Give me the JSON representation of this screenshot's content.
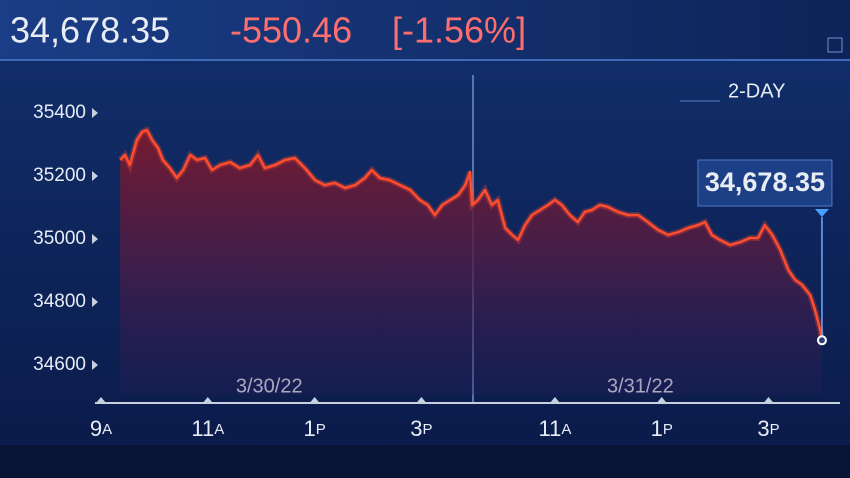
{
  "chart_data": {
    "type": "line",
    "header": {
      "value": "34,678.35",
      "change": "-550.46",
      "change_pct": "[-1.56%]"
    },
    "period_label": "2-DAY",
    "last_value_label": "34,678.35",
    "date_labels": [
      {
        "x": 12.15,
        "label": "3/30/22"
      },
      {
        "x": 19.1,
        "label": "3/31/22"
      }
    ],
    "xlim": [
      8.9,
      22.9
    ],
    "xticks": [
      {
        "value": 9,
        "label": "9A"
      },
      {
        "value": 11,
        "label": "11A"
      },
      {
        "value": 13,
        "label": "1P"
      },
      {
        "value": 15,
        "label": "3P"
      },
      {
        "value": 17.5,
        "label": "11A"
      },
      {
        "value": 19.5,
        "label": "1P"
      },
      {
        "value": 21.5,
        "label": "3P"
      }
    ],
    "ylim": [
      34505,
      35520
    ],
    "yticks": [
      34600,
      34800,
      35000,
      35200,
      35400
    ],
    "series": [
      {
        "color": "#ff4d2e",
        "x": [
          9.36,
          9.45,
          9.54,
          9.67,
          9.77,
          9.86,
          9.96,
          10.07,
          10.16,
          10.29,
          10.42,
          10.54,
          10.67,
          10.8,
          10.95,
          11.08,
          11.23,
          11.42,
          11.6,
          11.79,
          11.94,
          12.07,
          12.26,
          12.45,
          12.63,
          12.82,
          13.01,
          13.19,
          13.38,
          13.57,
          13.76,
          13.94,
          14.07,
          14.22,
          14.41,
          14.6,
          14.79,
          14.97,
          15.12,
          15.25,
          15.39,
          15.54,
          15.69,
          15.82,
          15.91,
          15.95,
          16.06,
          16.19,
          16.32,
          16.43,
          16.57,
          16.7,
          16.81,
          16.94,
          17.07,
          17.22,
          17.37,
          17.5,
          17.63,
          17.78,
          17.93,
          18.06,
          18.19,
          18.34,
          18.49,
          18.68,
          18.87,
          19.06,
          19.24,
          19.43,
          19.62,
          19.81,
          19.99,
          20.18,
          20.31,
          20.44,
          20.59,
          20.78,
          20.97,
          21.15,
          21.3,
          21.43,
          21.57,
          21.72,
          21.87,
          22,
          22.13,
          22.28,
          22.37,
          22.47,
          22.5
        ],
        "values": [
          35251,
          35267,
          35235,
          35314,
          35340,
          35346,
          35314,
          35289,
          35251,
          35225,
          35194,
          35219,
          35267,
          35251,
          35257,
          35219,
          35235,
          35244,
          35225,
          35235,
          35267,
          35225,
          35235,
          35251,
          35257,
          35225,
          35187,
          35171,
          35178,
          35162,
          35171,
          35194,
          35219,
          35194,
          35187,
          35171,
          35156,
          35124,
          35108,
          35076,
          35108,
          35124,
          35140,
          35171,
          35213,
          35108,
          35124,
          35156,
          35108,
          35124,
          35035,
          35013,
          34997,
          35044,
          35076,
          35092,
          35108,
          35124,
          35108,
          35076,
          35054,
          35086,
          35092,
          35108,
          35102,
          35086,
          35076,
          35076,
          35054,
          35029,
          35013,
          35022,
          35035,
          35044,
          35054,
          35013,
          34997,
          34981,
          34990,
          35003,
          35003,
          35044,
          35013,
          34965,
          34902,
          34870,
          34854,
          34822,
          34775,
          34710,
          34678.35
        ]
      }
    ]
  }
}
